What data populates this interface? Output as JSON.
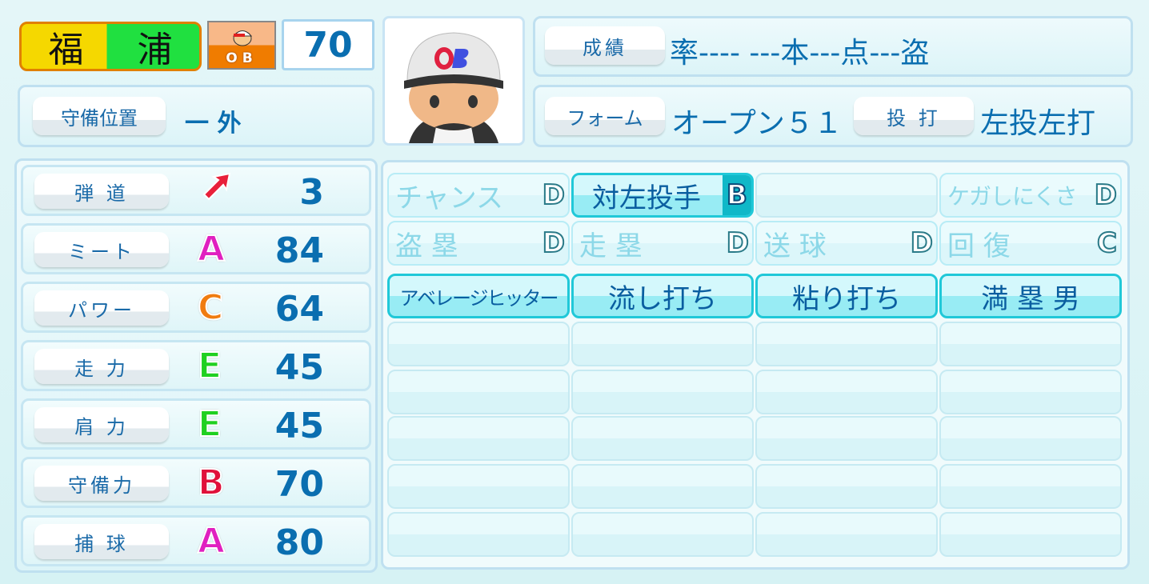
{
  "player": {
    "name": [
      "福",
      "浦"
    ],
    "team": "OB",
    "overall": "70"
  },
  "position": {
    "label": "守備位置",
    "value": "一 外"
  },
  "record": {
    "label": "成績",
    "value": "率---- ---本---点---盗"
  },
  "form": {
    "label": "フォーム",
    "value": "オープン５１"
  },
  "handedness": {
    "label": "投 打",
    "value": "左投左打"
  },
  "stats": [
    {
      "label": "弾 道",
      "grade": "",
      "value": "3",
      "icon": "trajectory-arrow-icon"
    },
    {
      "label": "ミート",
      "grade": "A",
      "value": "84"
    },
    {
      "label": "パワー",
      "grade": "C",
      "value": "64"
    },
    {
      "label": "走 力",
      "grade": "E",
      "value": "45"
    },
    {
      "label": "肩 力",
      "grade": "E",
      "value": "45"
    },
    {
      "label": "守備力",
      "grade": "B",
      "value": "70"
    },
    {
      "label": "捕 球",
      "grade": "A",
      "value": "80"
    }
  ],
  "grade_colors": {
    "A": "#e020c0",
    "B": "#e0103a",
    "C": "#f07c10",
    "D": "#2a7a88",
    "E": "#20d020"
  },
  "abilities": [
    {
      "name": "チャンス",
      "grade": "D",
      "style": "gray"
    },
    {
      "name": "対左投手",
      "grade": "B",
      "style": "on"
    },
    {
      "name": "",
      "grade": "",
      "style": "empty"
    },
    {
      "name": "ケガしにくさ",
      "grade": "D",
      "style": "gray"
    },
    {
      "name": "盗 塁",
      "grade": "D",
      "style": "gray"
    },
    {
      "name": "走 塁",
      "grade": "D",
      "style": "gray"
    },
    {
      "name": "送 球",
      "grade": "D",
      "style": "gray"
    },
    {
      "name": "回 復",
      "grade": "C",
      "style": "gray"
    },
    {
      "name": "アベレージヒッター",
      "grade": "",
      "style": "on"
    },
    {
      "name": "流し打ち",
      "grade": "",
      "style": "on"
    },
    {
      "name": "粘り打ち",
      "grade": "",
      "style": "on"
    },
    {
      "name": "満 塁 男",
      "grade": "",
      "style": "on"
    }
  ]
}
